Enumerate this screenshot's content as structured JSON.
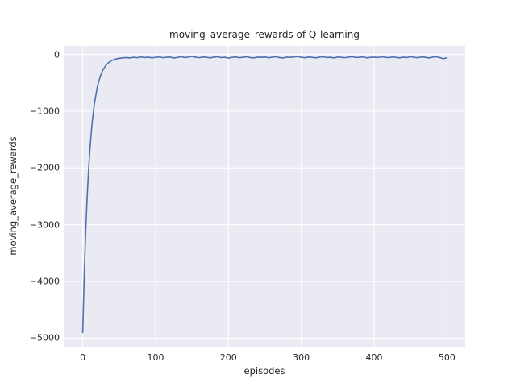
{
  "chart_data": {
    "type": "line",
    "title": "moving_average_rewards of Q-learning",
    "xlabel": "episodes",
    "ylabel": "moving_average_rewards",
    "xlim": [
      -25,
      525
    ],
    "ylim": [
      -5150,
      150
    ],
    "xticks": [
      0,
      100,
      200,
      300,
      400,
      500
    ],
    "xtick_labels": [
      "0",
      "100",
      "200",
      "300",
      "400",
      "500"
    ],
    "yticks": [
      0,
      -1000,
      -2000,
      -3000,
      -4000,
      -5000
    ],
    "ytick_labels": [
      "0",
      "−1000",
      "−2000",
      "−3000",
      "−4000",
      "−5000"
    ],
    "grid": true,
    "legend": "none",
    "line_color": "#4c72b0",
    "axes_background": "#eaeaf2",
    "grid_color": "#ffffff",
    "series": [
      {
        "name": "moving_average_rewards",
        "x": [
          0,
          2,
          4,
          6,
          8,
          10,
          13,
          16,
          20,
          24,
          28,
          32,
          36,
          40,
          45,
          50,
          55,
          60,
          65,
          70,
          75,
          80,
          85,
          90,
          95,
          100,
          105,
          110,
          115,
          120,
          125,
          130,
          135,
          140,
          145,
          150,
          155,
          160,
          165,
          170,
          175,
          180,
          185,
          190,
          195,
          200,
          205,
          210,
          215,
          220,
          225,
          230,
          235,
          240,
          245,
          250,
          255,
          260,
          265,
          270,
          275,
          280,
          285,
          290,
          295,
          300,
          305,
          310,
          315,
          320,
          325,
          330,
          335,
          340,
          345,
          350,
          355,
          360,
          365,
          370,
          375,
          380,
          385,
          390,
          395,
          400,
          405,
          410,
          415,
          420,
          425,
          430,
          435,
          440,
          445,
          450,
          455,
          460,
          465,
          470,
          475,
          480,
          485,
          490,
          495,
          500
        ],
        "y": [
          -4900,
          -3930,
          -3160,
          -2540,
          -2045,
          -1645,
          -1190,
          -870,
          -575,
          -387,
          -265,
          -188,
          -138,
          -105,
          -82,
          -68,
          -60,
          -55,
          -62,
          -50,
          -58,
          -45,
          -55,
          -48,
          -60,
          -52,
          -44,
          -58,
          -50,
          -47,
          -62,
          -53,
          -40,
          -55,
          -48,
          -35,
          -50,
          -58,
          -45,
          -52,
          -60,
          -48,
          -42,
          -55,
          -50,
          -65,
          -52,
          -45,
          -58,
          -50,
          -42,
          -55,
          -60,
          -48,
          -52,
          -45,
          -58,
          -50,
          -40,
          -55,
          -62,
          -48,
          -52,
          -45,
          -38,
          -50,
          -58,
          -46,
          -52,
          -60,
          -48,
          -42,
          -55,
          -50,
          -62,
          -45,
          -52,
          -58,
          -48,
          -40,
          -55,
          -50,
          -45,
          -60,
          -52,
          -48,
          -55,
          -42,
          -50,
          -58,
          -45,
          -52,
          -60,
          -48,
          -55,
          -40,
          -52,
          -58,
          -45,
          -50,
          -62,
          -48,
          -42,
          -55,
          -75,
          -60
        ]
      }
    ]
  }
}
